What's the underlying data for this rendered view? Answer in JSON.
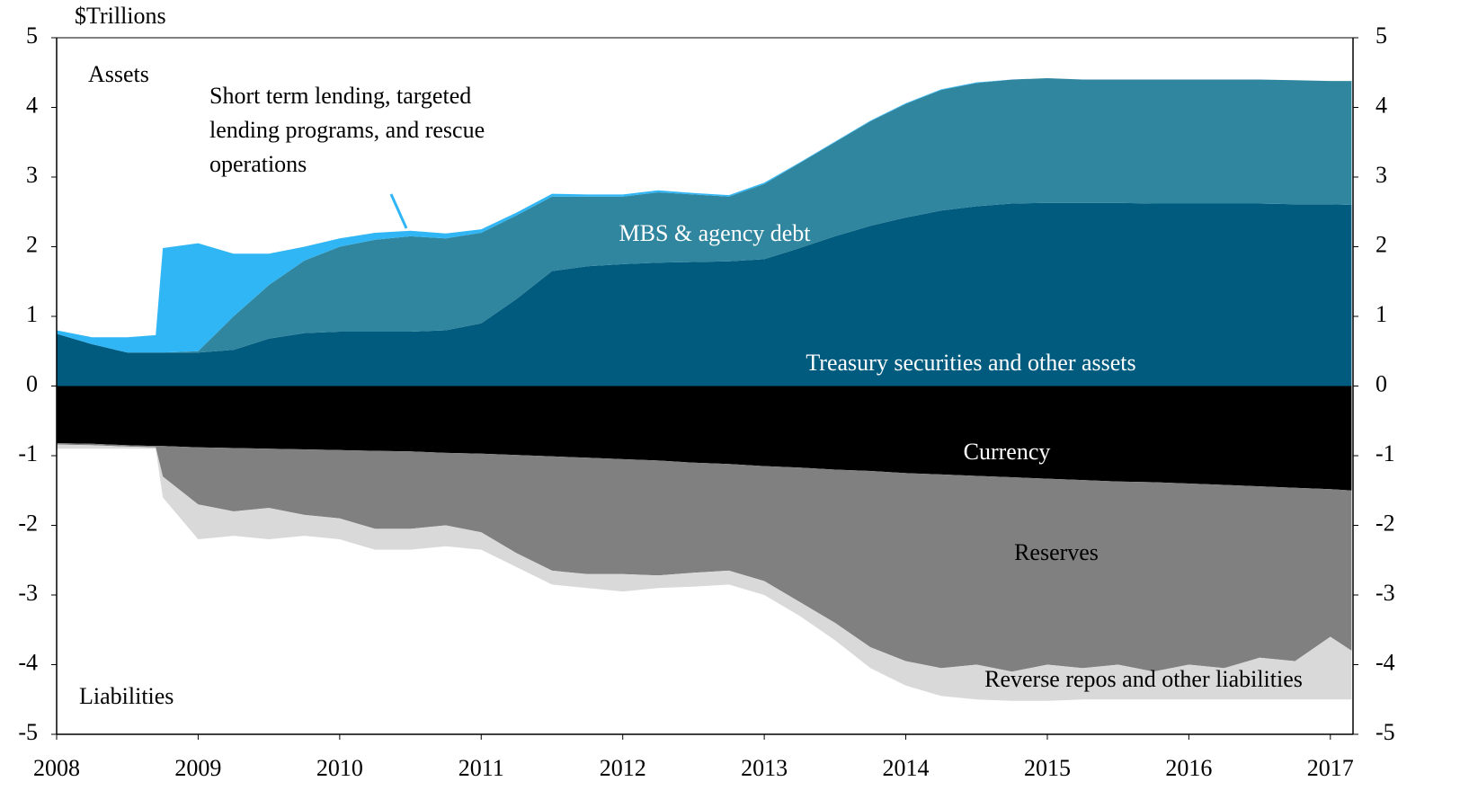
{
  "chart_data": {
    "type": "stacked_area",
    "y_label": "$Trillions",
    "annotations": [
      "Assets",
      "Liabilities"
    ],
    "x": [
      2008,
      2008.25,
      2008.5,
      2008.7,
      2008.75,
      2009,
      2009.25,
      2009.5,
      2009.75,
      2010,
      2010.25,
      2010.5,
      2010.75,
      2011,
      2011.25,
      2011.5,
      2011.75,
      2012,
      2012.25,
      2012.5,
      2012.75,
      2013,
      2013.25,
      2013.5,
      2013.75,
      2014,
      2014.25,
      2014.5,
      2014.75,
      2015,
      2015.25,
      2015.5,
      2015.75,
      2016,
      2016.25,
      2016.5,
      2016.75,
      2017,
      2017.15
    ],
    "xlim": [
      2008,
      2017.16
    ],
    "xticks": [
      2008,
      2009,
      2010,
      2011,
      2012,
      2013,
      2014,
      2015,
      2016,
      2017
    ],
    "ylim": [
      -5,
      5
    ],
    "yticks": [
      5,
      4,
      3,
      2,
      1,
      0,
      -1,
      -2,
      -3,
      -4,
      -5
    ],
    "y2lim": [
      -5,
      5
    ],
    "y2ticks": [
      5,
      4,
      3,
      2,
      1,
      0,
      -1,
      -2,
      -3,
      -4,
      -5
    ],
    "series": [
      {
        "name": "Treasury securities and other assets",
        "color": "#005b7f",
        "values": [
          0.75,
          0.6,
          0.48,
          0.48,
          0.48,
          0.48,
          0.52,
          0.68,
          0.76,
          0.78,
          0.78,
          0.78,
          0.8,
          0.9,
          1.25,
          1.65,
          1.72,
          1.75,
          1.77,
          1.78,
          1.79,
          1.82,
          1.98,
          2.15,
          2.3,
          2.42,
          2.52,
          2.58,
          2.62,
          2.63,
          2.63,
          2.63,
          2.62,
          2.62,
          2.62,
          2.62,
          2.61,
          2.61,
          2.6
        ]
      },
      {
        "name": "MBS & agency debt",
        "color": "#31869f",
        "values": [
          0,
          0,
          0,
          0,
          0,
          0.02,
          0.48,
          0.77,
          1.04,
          1.22,
          1.32,
          1.37,
          1.32,
          1.3,
          1.2,
          1.07,
          1.0,
          0.97,
          1.01,
          0.97,
          0.93,
          1.08,
          1.22,
          1.35,
          1.5,
          1.63,
          1.73,
          1.77,
          1.78,
          1.79,
          1.77,
          1.77,
          1.78,
          1.78,
          1.78,
          1.78,
          1.78,
          1.77,
          1.78
        ]
      },
      {
        "name": "Short term lending, targeted lending programs, and rescue operations",
        "color": "#31b6f5",
        "values": [
          0.05,
          0.1,
          0.22,
          0.25,
          1.5,
          1.55,
          0.9,
          0.45,
          0.2,
          0.12,
          0.1,
          0.08,
          0.07,
          0.05,
          0.04,
          0.04,
          0.03,
          0.03,
          0.03,
          0.02,
          0.02,
          0.02,
          0.01,
          0.01,
          0.01,
          0.01,
          0.01,
          0.01,
          0,
          0,
          0,
          0,
          0,
          0,
          0,
          0,
          0,
          0,
          0
        ]
      },
      {
        "name": "Currency",
        "color": "#000000",
        "values": [
          -0.82,
          -0.83,
          -0.85,
          -0.86,
          -0.86,
          -0.88,
          -0.89,
          -0.9,
          -0.91,
          -0.92,
          -0.93,
          -0.94,
          -0.96,
          -0.97,
          -0.99,
          -1.01,
          -1.03,
          -1.05,
          -1.07,
          -1.1,
          -1.12,
          -1.15,
          -1.17,
          -1.2,
          -1.22,
          -1.25,
          -1.27,
          -1.29,
          -1.31,
          -1.33,
          -1.35,
          -1.37,
          -1.38,
          -1.4,
          -1.42,
          -1.44,
          -1.46,
          -1.48,
          -1.5
        ]
      },
      {
        "name": "Reserves",
        "color": "#808080",
        "values": [
          -0.02,
          -0.02,
          -0.02,
          -0.02,
          -0.44,
          -0.82,
          -0.91,
          -0.85,
          -0.94,
          -0.98,
          -1.12,
          -1.11,
          -1.04,
          -1.13,
          -1.41,
          -1.64,
          -1.67,
          -1.65,
          -1.65,
          -1.58,
          -1.53,
          -1.65,
          -1.93,
          -2.2,
          -2.53,
          -2.7,
          -2.78,
          -2.71,
          -2.79,
          -2.67,
          -2.7,
          -2.63,
          -2.72,
          -2.6,
          -2.63,
          -2.46,
          -2.49,
          -2.12,
          -2.3
        ]
      },
      {
        "name": "Reverse repos and other liabilities",
        "color": "#d9d9d9",
        "values": [
          -0.06,
          -0.05,
          -0.03,
          -0.02,
          -0.3,
          -0.5,
          -0.35,
          -0.45,
          -0.3,
          -0.3,
          -0.3,
          -0.3,
          -0.3,
          -0.25,
          -0.2,
          -0.2,
          -0.2,
          -0.25,
          -0.18,
          -0.2,
          -0.2,
          -0.2,
          -0.2,
          -0.25,
          -0.3,
          -0.35,
          -0.4,
          -0.5,
          -0.42,
          -0.52,
          -0.45,
          -0.5,
          -0.4,
          -0.5,
          -0.45,
          -0.6,
          -0.55,
          -0.9,
          -0.7
        ]
      }
    ]
  }
}
